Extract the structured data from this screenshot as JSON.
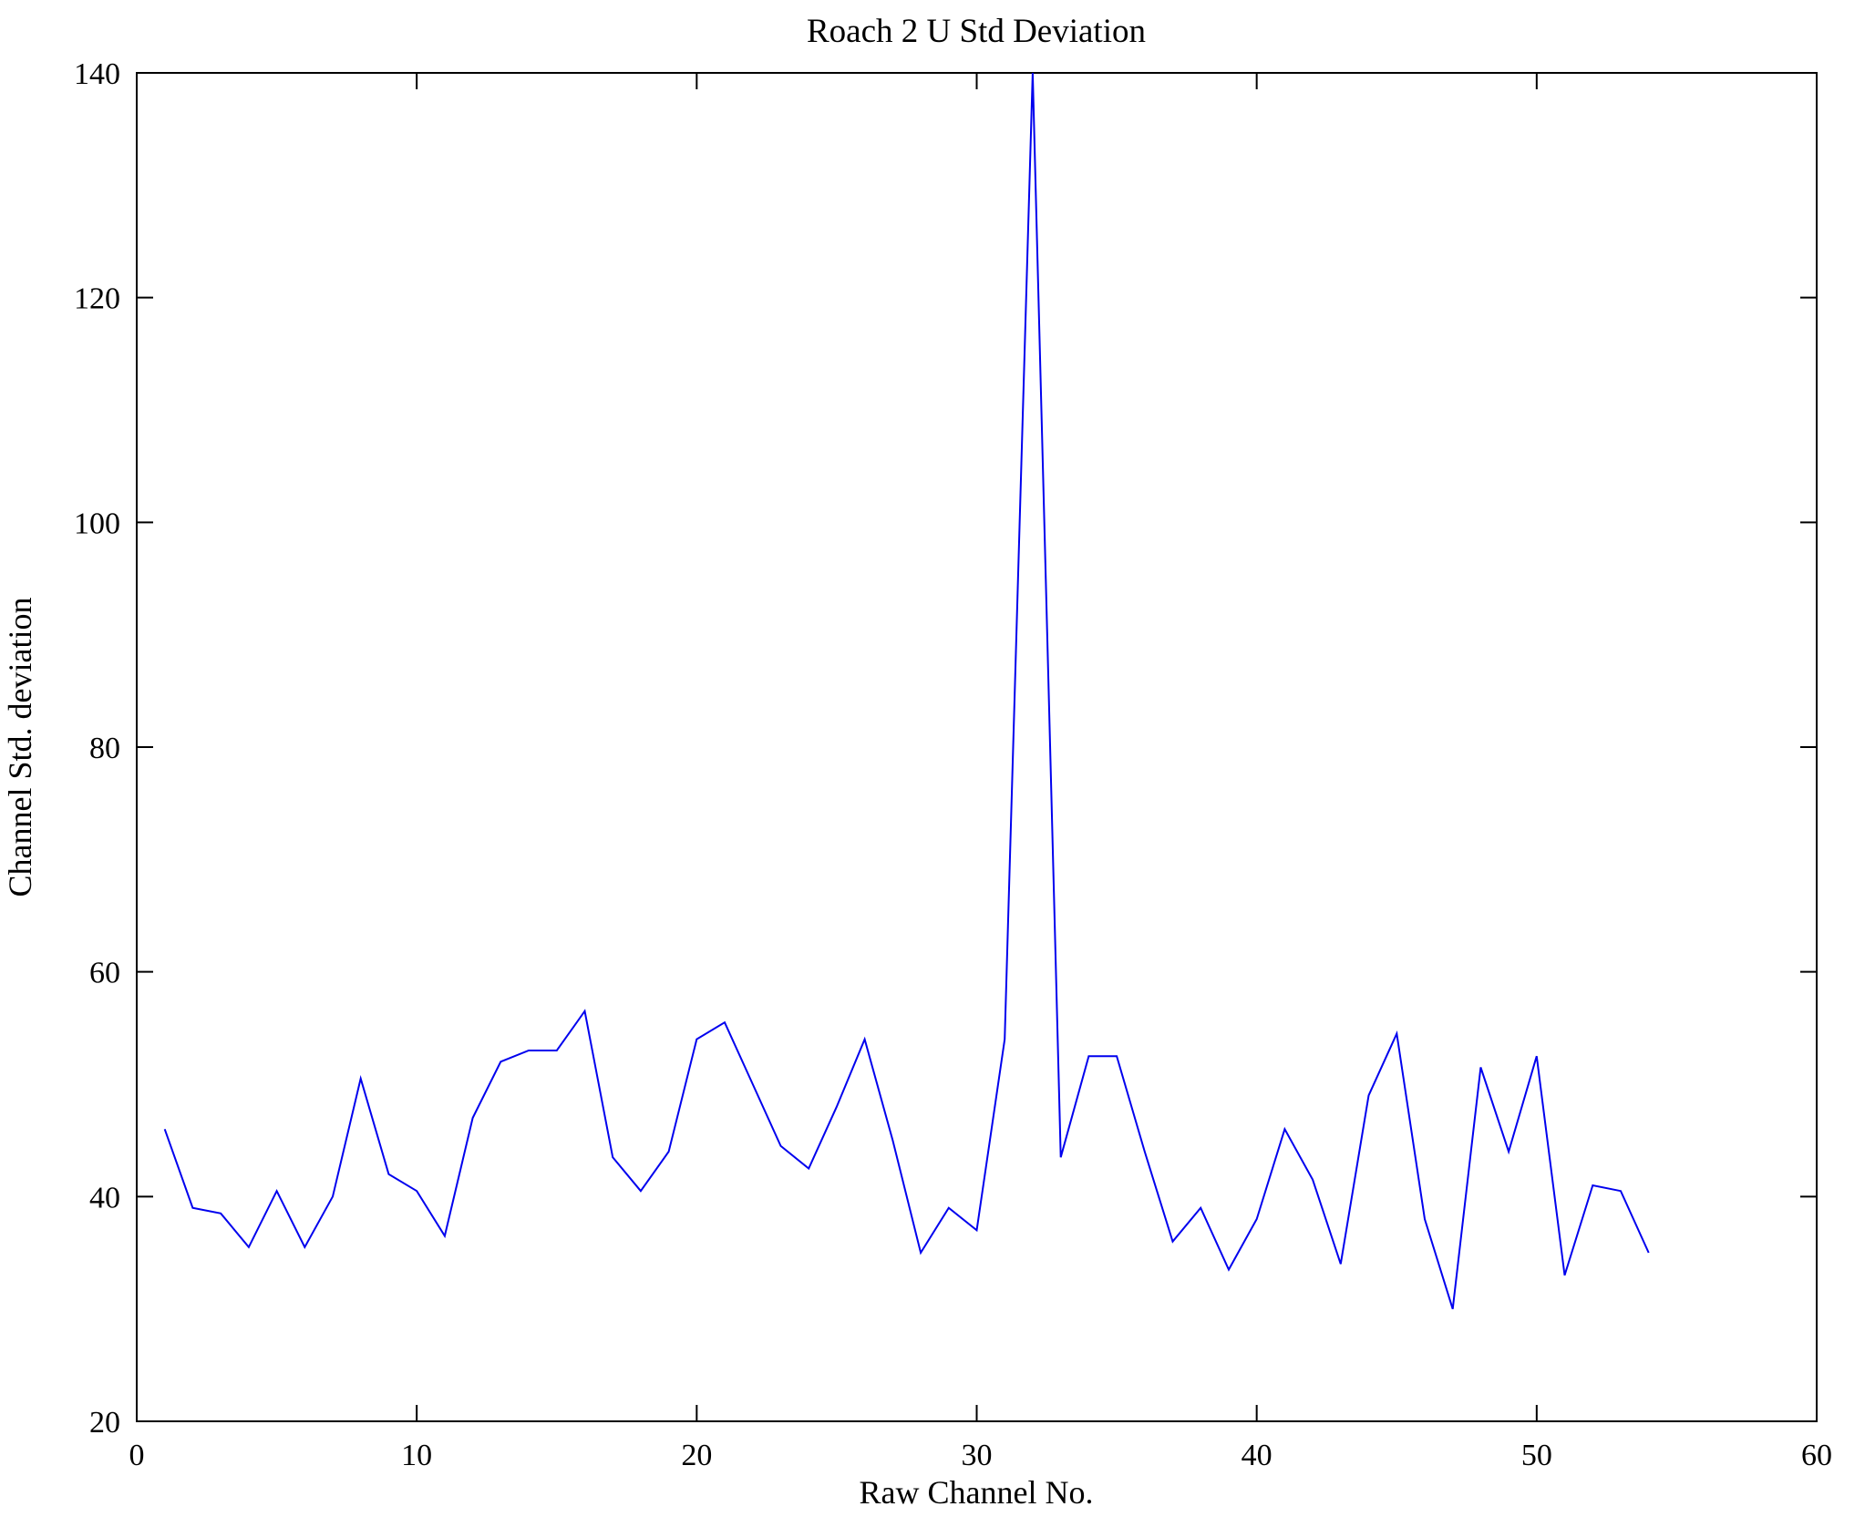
{
  "chart_data": {
    "type": "line",
    "title": "Roach 2 U Std Deviation",
    "xlabel": "Raw Channel No.",
    "ylabel": "Channel Std. deviation",
    "xlim": [
      0,
      60
    ],
    "ylim": [
      20,
      140
    ],
    "xticks": [
      0,
      10,
      20,
      30,
      40,
      50,
      60
    ],
    "yticks": [
      20,
      40,
      60,
      80,
      100,
      120,
      140
    ],
    "grid": false,
    "legend": "none",
    "line_color": "#0000ee",
    "x": [
      1,
      2,
      3,
      4,
      5,
      6,
      7,
      8,
      9,
      10,
      11,
      12,
      13,
      14,
      15,
      16,
      17,
      18,
      19,
      20,
      21,
      22,
      23,
      24,
      25,
      26,
      27,
      28,
      29,
      30,
      31,
      32,
      33,
      34,
      35,
      36,
      37,
      38,
      39,
      40,
      41,
      42,
      43,
      44,
      45,
      46,
      47,
      48,
      49,
      50,
      51,
      52,
      53,
      54
    ],
    "y": [
      46,
      39,
      38.5,
      35.5,
      40.5,
      35.5,
      40,
      50.5,
      42,
      40.5,
      36.5,
      47,
      52,
      53,
      53,
      56.5,
      43.5,
      40.5,
      44,
      54,
      55.5,
      50,
      44.5,
      42.5,
      48,
      54,
      45,
      35,
      39,
      37,
      54,
      140,
      43.5,
      52.5,
      52.5,
      44,
      36,
      39,
      33.5,
      38,
      46,
      41.5,
      34,
      49,
      54.5,
      38,
      30,
      51.5,
      44,
      52.5,
      33,
      41,
      40.5,
      35
    ]
  }
}
